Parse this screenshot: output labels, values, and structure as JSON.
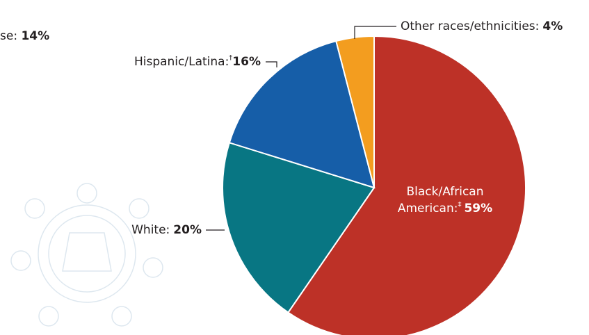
{
  "cropped_label": {
    "text": "se:",
    "value_label": "14%"
  },
  "chart_data": {
    "type": "pie",
    "categories": [
      "Black/African American:",
      "White:",
      "Hispanic/Latina:",
      "Other races/ethnicities:"
    ],
    "footnote_marks": [
      "‡",
      null,
      "†",
      null
    ],
    "values": [
      59,
      20,
      16,
      4
    ],
    "value_labels": [
      "59%",
      "20%",
      "16%",
      "4%"
    ],
    "colors": [
      "#bd3127",
      "#087683",
      "#165ea8",
      "#f39d1f"
    ],
    "start_angle": 0,
    "direction": "clockwise"
  }
}
